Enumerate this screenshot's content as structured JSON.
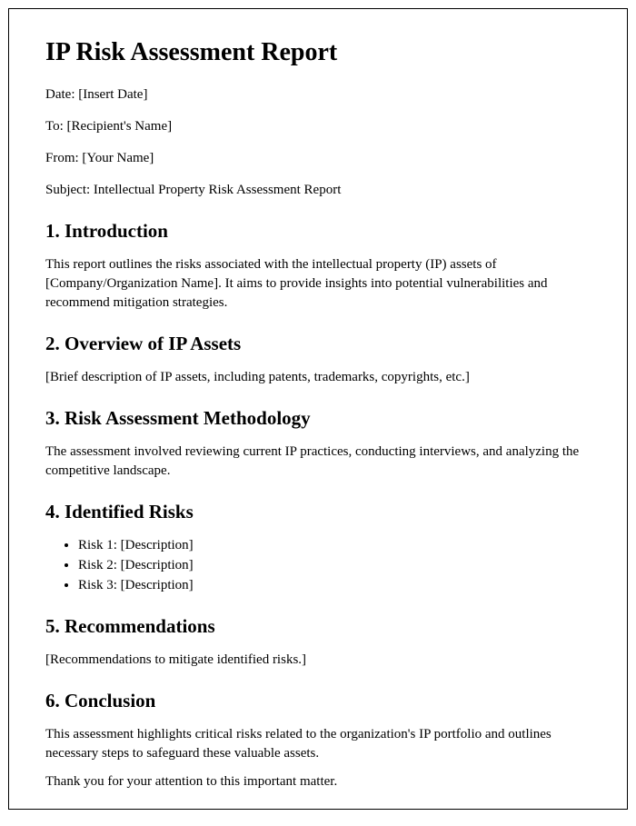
{
  "title": "IP Risk Assessment Report",
  "meta": {
    "date": "Date: [Insert Date]",
    "to": "To: [Recipient's Name]",
    "from": "From: [Your Name]",
    "subject": "Subject: Intellectual Property Risk Assessment Report"
  },
  "sections": {
    "introduction": {
      "heading": "1. Introduction",
      "body": "This report outlines the risks associated with the intellectual property (IP) assets of [Company/Organization Name]. It aims to provide insights into potential vulnerabilities and recommend mitigation strategies."
    },
    "overview": {
      "heading": "2. Overview of IP Assets",
      "body": "[Brief description of IP assets, including patents, trademarks, copyrights, etc.]"
    },
    "methodology": {
      "heading": "3. Risk Assessment Methodology",
      "body": "The assessment involved reviewing current IP practices, conducting interviews, and analyzing the competitive landscape."
    },
    "risks": {
      "heading": "4. Identified Risks",
      "items": [
        "Risk 1: [Description]",
        "Risk 2: [Description]",
        "Risk 3: [Description]"
      ]
    },
    "recommendations": {
      "heading": "5. Recommendations",
      "body": "[Recommendations to mitigate identified risks.]"
    },
    "conclusion": {
      "heading": "6. Conclusion",
      "body": "This assessment highlights critical risks related to the organization's IP portfolio and outlines necessary steps to safeguard these valuable assets."
    }
  },
  "closing": {
    "thanks": "Thank you for your attention to this important matter."
  },
  "styling": {
    "font_family": "Times New Roman",
    "title_fontsize": 28,
    "heading_fontsize": 21,
    "body_fontsize": 15,
    "text_color": "#000000",
    "background_color": "#ffffff",
    "border_color": "#000000"
  }
}
